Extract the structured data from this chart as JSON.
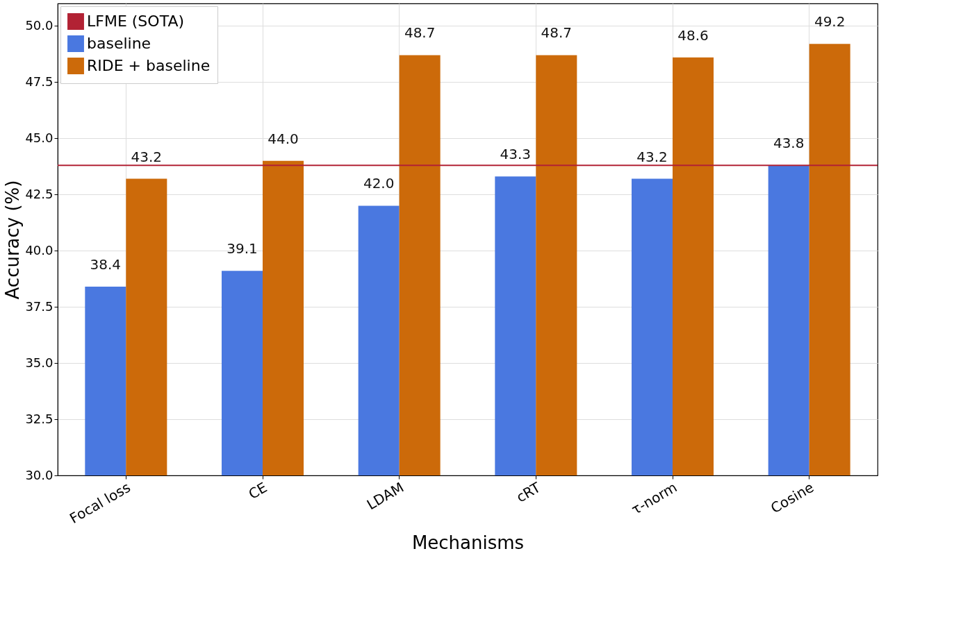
{
  "chart_data": {
    "type": "bar",
    "xlabel": "Mechanisms",
    "ylabel": "Accuracy (%)",
    "categories": [
      "Focal loss",
      "CE",
      "LDAM",
      "cRT",
      "τ-norm",
      "Cosine"
    ],
    "series": [
      {
        "name": "baseline",
        "color": "#4a78e0",
        "values": [
          38.4,
          39.1,
          42.0,
          43.3,
          43.2,
          43.8
        ],
        "value_labels": [
          "38.4",
          "39.1",
          "42.0",
          "43.3",
          "43.2",
          "43.8"
        ]
      },
      {
        "name": "RIDE + baseline",
        "color": "#cc6a0a",
        "values": [
          43.2,
          44.0,
          48.7,
          48.7,
          48.6,
          49.2
        ],
        "value_labels": [
          "43.2",
          "44.0",
          "48.7",
          "48.7",
          "48.6",
          "49.2"
        ]
      }
    ],
    "ref_lines": [
      {
        "axis": "y",
        "value": 43.8,
        "label": "LFME (SOTA)",
        "color": "#b22234"
      }
    ],
    "ylim": [
      30,
      51
    ],
    "yticks": [
      {
        "value": 30,
        "label": "30.0"
      },
      32.5,
      {
        "value": 35,
        "label": "35.0"
      },
      37.5,
      {
        "value": 40,
        "label": "40.0"
      },
      42.5,
      {
        "value": 45,
        "label": "45.0"
      },
      47.5,
      {
        "value": 50,
        "label": "50.0"
      }
    ],
    "grid": true,
    "legend": "top left"
  }
}
